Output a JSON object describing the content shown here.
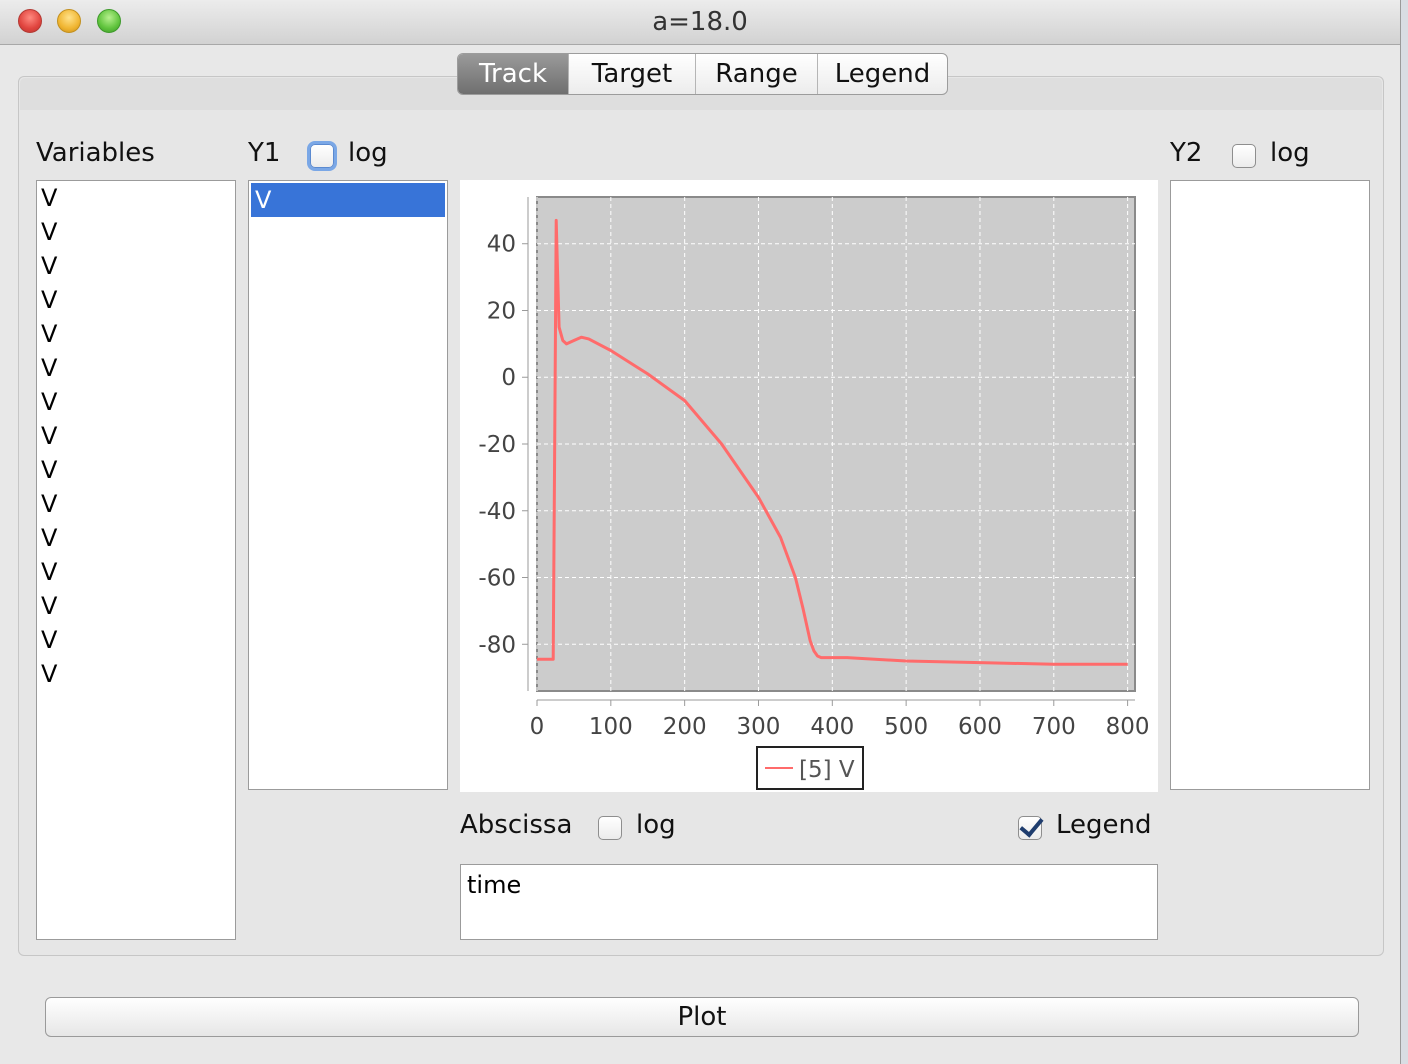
{
  "window": {
    "title": "a=18.0"
  },
  "tabs": [
    {
      "label": "Track",
      "active": true
    },
    {
      "label": "Target",
      "active": false
    },
    {
      "label": "Range",
      "active": false
    },
    {
      "label": "Legend",
      "active": false
    }
  ],
  "variables": {
    "label": "Variables",
    "items": [
      "V",
      "V",
      "V",
      "V",
      "V",
      "V",
      "V",
      "V",
      "V",
      "V",
      "V",
      "V",
      "V",
      "V",
      "V"
    ]
  },
  "y1": {
    "label": "Y1",
    "log_label": "log",
    "log_checked": false,
    "items": [
      "V"
    ],
    "selected_index": 0
  },
  "y2": {
    "label": "Y2",
    "log_label": "log",
    "log_checked": false,
    "items": []
  },
  "abscissa": {
    "label": "Abscissa",
    "log_label": "log",
    "log_checked": false,
    "value": "time"
  },
  "legend_toggle": {
    "label": "Legend",
    "checked": true
  },
  "plot_button": {
    "label": "Plot"
  },
  "chart_data": {
    "type": "line",
    "title": "",
    "xlabel": "",
    "ylabel": "",
    "xlim": [
      0,
      810
    ],
    "ylim": [
      -94,
      54
    ],
    "x_ticks": [
      0,
      100,
      200,
      300,
      400,
      500,
      600,
      700,
      800
    ],
    "y_ticks": [
      40,
      20,
      0,
      -20,
      -40,
      -60,
      -80
    ],
    "grid": true,
    "legend_position": "bottom-center",
    "series": [
      {
        "name": "[5] V",
        "color": "#ff6b6b",
        "x": [
          0,
          22,
          24,
          26,
          28,
          30,
          35,
          40,
          50,
          60,
          70,
          100,
          150,
          200,
          250,
          300,
          330,
          350,
          360,
          370,
          375,
          380,
          385,
          390,
          395,
          400,
          420,
          500,
          600,
          700,
          800
        ],
        "y": [
          -84.5,
          -84.5,
          -20,
          47,
          30,
          15,
          11,
          10,
          11,
          12,
          11.5,
          8,
          1,
          -7,
          -20,
          -36,
          -48,
          -60,
          -69,
          -79,
          -82,
          -83.5,
          -84,
          -84,
          -84,
          -84,
          -84,
          -85,
          -85.5,
          -86,
          -86
        ]
      }
    ]
  }
}
